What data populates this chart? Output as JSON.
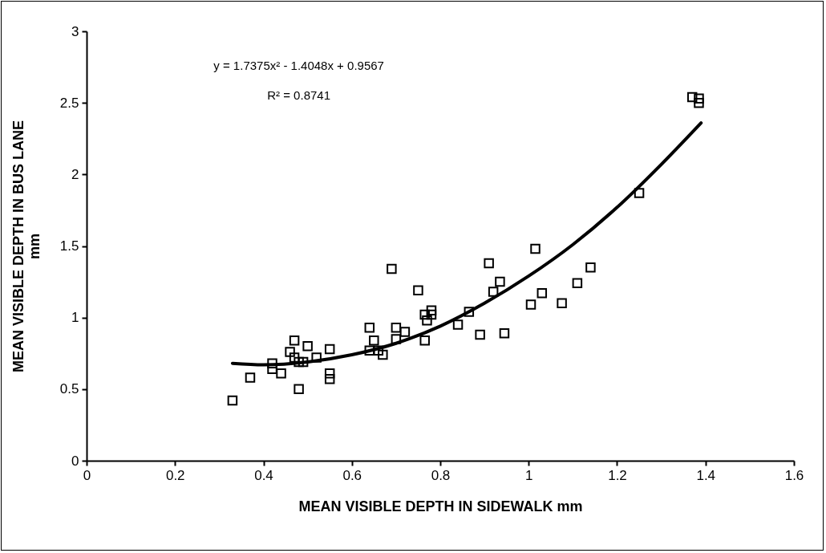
{
  "chart_data": {
    "type": "scatter",
    "xlabel": "MEAN VISIBLE DEPTH IN SIDEWALK  mm",
    "ylabel": "MEAN VISIBLE DEPTH IN BUS LANE\nmm",
    "xlim": [
      0,
      1.6
    ],
    "xticks": [
      0,
      0.2,
      0.4,
      0.6,
      0.8,
      1,
      1.2,
      1.4,
      1.6
    ],
    "ylim": [
      0,
      3
    ],
    "yticks": [
      0,
      0.5,
      1,
      1.5,
      2,
      2.5,
      3
    ],
    "grid": false,
    "marker": "square",
    "annotations": [
      "y = 1.7375x² - 1.4048x + 0.9567",
      "R² = 0.8741"
    ],
    "series": [
      {
        "type": "scatter",
        "color": "#000000",
        "x": [
          0.33,
          0.37,
          0.42,
          0.42,
          0.44,
          0.46,
          0.47,
          0.47,
          0.48,
          0.48,
          0.49,
          0.5,
          0.52,
          0.55,
          0.55,
          0.55,
          0.64,
          0.64,
          0.65,
          0.66,
          0.67,
          0.69,
          0.7,
          0.7,
          0.72,
          0.75,
          0.765,
          0.765,
          0.77,
          0.78,
          0.78,
          0.84,
          0.865,
          0.89,
          0.91,
          0.92,
          0.935,
          0.945,
          1.005,
          1.015,
          1.03,
          1.075,
          1.11,
          1.14,
          1.25,
          1.37,
          1.385,
          1.385
        ],
        "values": [
          0.42,
          0.58,
          0.68,
          0.64,
          0.61,
          0.76,
          0.84,
          0.72,
          0.69,
          0.5,
          0.69,
          0.8,
          0.72,
          0.78,
          0.61,
          0.57,
          0.93,
          0.77,
          0.84,
          0.77,
          0.74,
          1.34,
          0.93,
          0.85,
          0.9,
          1.19,
          1.02,
          0.84,
          0.98,
          1.05,
          1.02,
          0.95,
          1.04,
          0.88,
          1.38,
          1.18,
          1.25,
          0.89,
          1.09,
          1.48,
          1.17,
          1.1,
          1.24,
          1.35,
          1.87,
          2.54,
          2.53,
          2.5
        ]
      },
      {
        "type": "line",
        "color": "#000000",
        "marker": "none",
        "line_style": "solid",
        "x": [
          0.33,
          0.4,
          0.5,
          0.6,
          0.7,
          0.8,
          0.9,
          1.0,
          1.1,
          1.2,
          1.3,
          1.39
        ],
        "values": [
          0.68,
          0.67,
          0.69,
          0.74,
          0.82,
          0.94,
          1.1,
          1.29,
          1.51,
          1.77,
          2.07,
          2.36
        ]
      }
    ]
  }
}
